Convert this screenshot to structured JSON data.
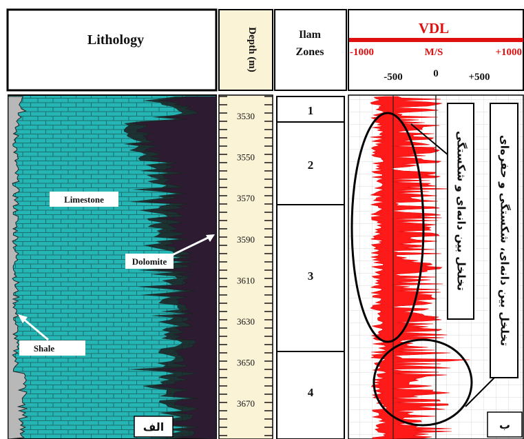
{
  "headers": {
    "lithology": "Lithology",
    "depth": "Depth (m)",
    "ilam": "Ilam",
    "zones": "Zones",
    "vdl": "VDL",
    "scale_left": "-1000",
    "scale_unit": "M/S",
    "scale_right": "+1000",
    "scale_m500": "-500",
    "scale_0": "0",
    "scale_p500": "+500"
  },
  "depths": [
    "3530",
    "3550",
    "3570",
    "3590",
    "3610",
    "3630",
    "3650",
    "3670"
  ],
  "zones": [
    "1",
    "2",
    "3",
    "4"
  ],
  "labels": {
    "limestone": "Limestone",
    "dolomite": "Dolomite",
    "shale": "Shale",
    "panel_a": "الف",
    "panel_b": "ب"
  },
  "annotations": {
    "upper": "تخلخل بین دانه‌ای و شکستگی",
    "lower": "تخلخل بین دانه‌ای، شکستگی و حفره‌ای"
  },
  "colors": {
    "limestone": "#25b5b5",
    "dolomite": "#8a1fa8",
    "shale": "#b8b8b8",
    "depth_track": "#fbf3d6",
    "vdl_curve": "#ff1a1a",
    "vdl_header": "#e01010"
  }
}
